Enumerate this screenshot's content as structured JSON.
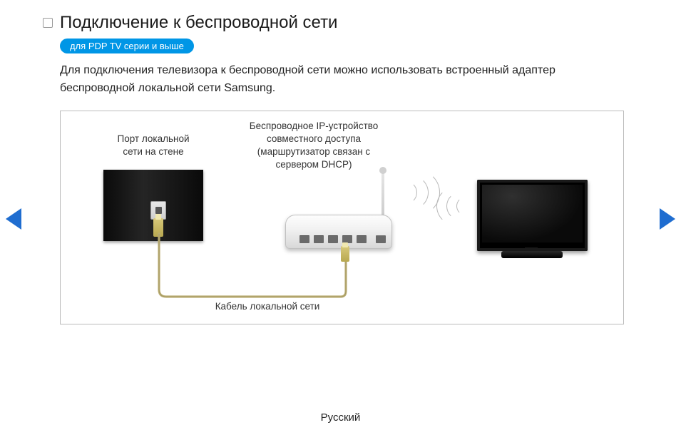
{
  "title": "Подключение к беспроводной сети",
  "badge": "для PDP TV серии и выше",
  "description": "Для подключения телевизора к беспроводной сети можно использовать встроенный адаптер беспроводной локальной сети Samsung.",
  "diagram": {
    "wall_port_label": "Порт локальной\nсети на стене",
    "router_label": "Беспроводное IP-устройство\nсовместного доступа\n(маршрутизатор связан с\nсервером DHCP)",
    "cable_label": "Кабель локальной сети",
    "colors": {
      "panel_dark": "#0a0a0a",
      "cable": "#b8a850",
      "router_body": "#f2f2f2",
      "wave": "#b9b9b9",
      "tv": "#000000",
      "border": "#bbbbbb"
    }
  },
  "footer": "Русский",
  "nav": {
    "arrow_color": "#1f6dd0"
  }
}
